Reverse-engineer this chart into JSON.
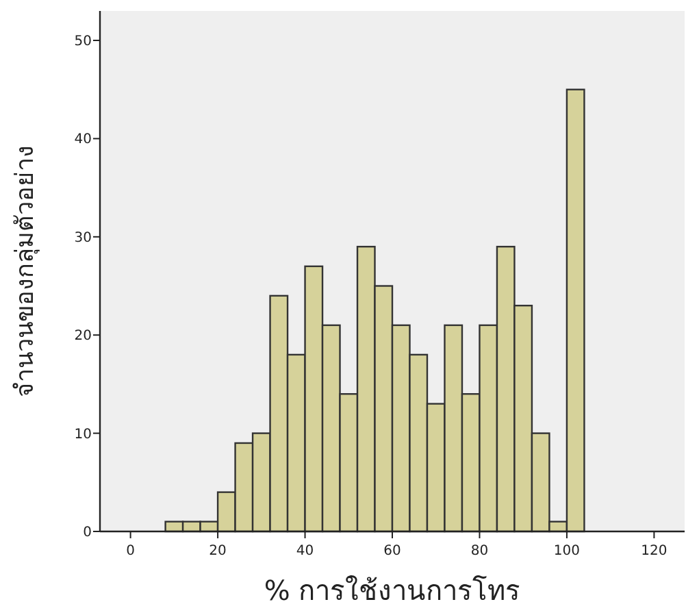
{
  "chart_data": {
    "type": "histogram",
    "xlabel": "% การใช้งานการโทร",
    "ylabel": "จำนวนของกลุ่มตัวอย่าง",
    "bins": [
      8,
      12,
      16,
      20,
      24,
      28,
      32,
      36,
      40,
      44,
      48,
      52,
      56,
      60,
      64,
      68,
      72,
      76,
      80,
      84,
      88,
      92,
      96,
      100,
      104
    ],
    "values": [
      1,
      1,
      1,
      4,
      9,
      10,
      24,
      18,
      27,
      21,
      14,
      29,
      25,
      21,
      18,
      13,
      21,
      14,
      21,
      29,
      23,
      10,
      1,
      45
    ],
    "color": "#d6d29a",
    "xlim": [
      -7,
      127
    ],
    "ylim": [
      0,
      53
    ],
    "xticks": [
      0,
      20,
      40,
      60,
      80,
      100,
      120
    ],
    "yticks": [
      0,
      10,
      20,
      30,
      40,
      50
    ],
    "grid": false
  }
}
